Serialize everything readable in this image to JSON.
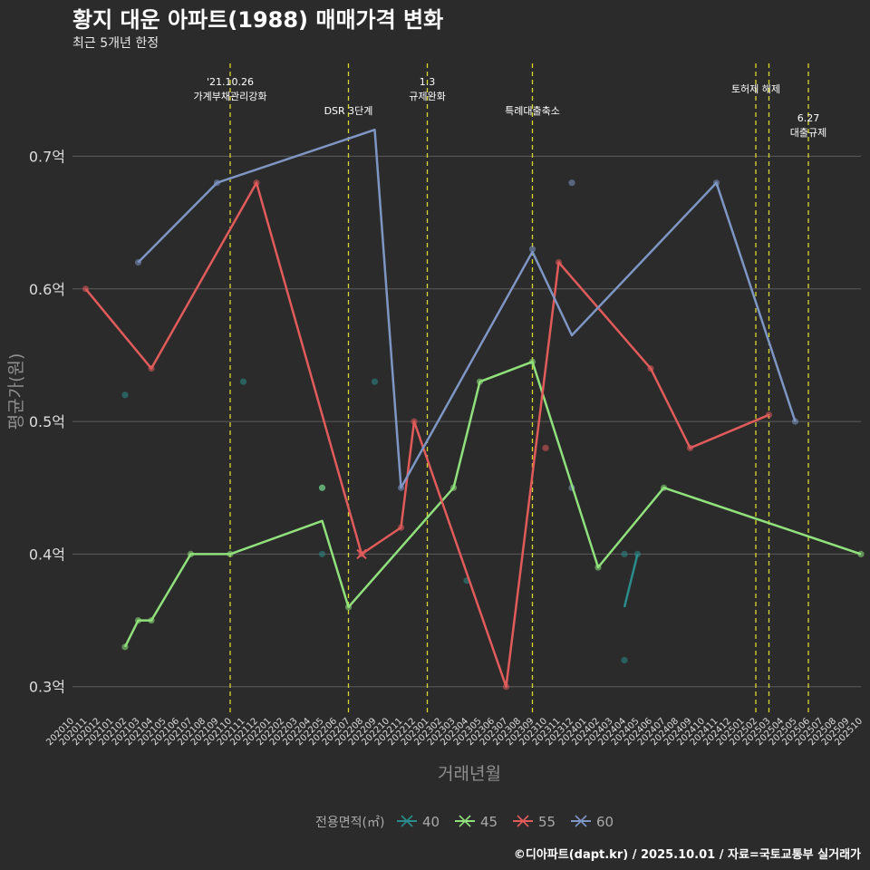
{
  "title": "황지 대운 아파트(1988) 매매가격 변화",
  "subtitle": "최근 5개년 한정",
  "caption": "©디아파트(dapt.kr) / 2025.10.01 / 자료=국토교통부 실거래가",
  "chart_data": {
    "type": "line",
    "xlabel": "거래년월",
    "ylabel": "평균가(원)",
    "ylim": [
      0.28,
      0.77
    ],
    "yticks": [
      {
        "value": 0.3,
        "label": "0.3억"
      },
      {
        "value": 0.4,
        "label": "0.4억"
      },
      {
        "value": 0.5,
        "label": "0.5억"
      },
      {
        "value": 0.6,
        "label": "0.6억"
      },
      {
        "value": 0.7,
        "label": "0.7억"
      }
    ],
    "categories": [
      "202010",
      "202011",
      "202012",
      "202101",
      "202102",
      "202103",
      "202104",
      "202105",
      "202106",
      "202107",
      "202108",
      "202109",
      "202110",
      "202111",
      "202112",
      "202201",
      "202202",
      "202203",
      "202204",
      "202205",
      "202206",
      "202207",
      "202208",
      "202209",
      "202210",
      "202211",
      "202212",
      "202301",
      "202302",
      "202303",
      "202304",
      "202305",
      "202306",
      "202307",
      "202308",
      "202309",
      "202310",
      "202311",
      "202312",
      "202401",
      "202402",
      "202403",
      "202404",
      "202405",
      "202406",
      "202407",
      "202408",
      "202409",
      "202410",
      "202411",
      "202412",
      "202501",
      "202502",
      "202503",
      "202504",
      "202505",
      "202506",
      "202507",
      "202508",
      "202509",
      "202510"
    ],
    "legend_title": "전용면적(㎡)",
    "series": [
      {
        "name": "40",
        "color": "#2a8c8c",
        "points": [
          [
            "202102",
            0.52
          ],
          [
            "202111",
            0.53
          ],
          [
            "202205",
            0.45
          ],
          [
            "202205",
            0.4
          ],
          [
            "202209",
            0.53
          ],
          [
            "202304",
            0.38
          ],
          [
            "202404",
            0.4
          ],
          [
            "202404",
            0.32
          ],
          [
            "202405",
            0.4
          ]
        ],
        "line": [
          [
            "202404",
            0.36
          ],
          [
            "202405",
            0.4
          ]
        ]
      },
      {
        "name": "45",
        "color": "#90e17c",
        "points": [
          [
            "202102",
            0.33
          ],
          [
            "202103",
            0.35
          ],
          [
            "202104",
            0.35
          ],
          [
            "202107",
            0.4
          ],
          [
            "202110",
            0.4
          ],
          [
            "202205",
            0.45
          ],
          [
            "202207",
            0.36
          ],
          [
            "202303",
            0.45
          ],
          [
            "202305",
            0.53
          ],
          [
            "202309",
            0.545
          ],
          [
            "202402",
            0.39
          ],
          [
            "202407",
            0.45
          ],
          [
            "202510",
            0.4
          ]
        ],
        "line": [
          [
            "202102",
            0.33
          ],
          [
            "202103",
            0.35
          ],
          [
            "202104",
            0.35
          ],
          [
            "202107",
            0.4
          ],
          [
            "202110",
            0.4
          ],
          [
            "202205",
            0.425
          ],
          [
            "202207",
            0.36
          ],
          [
            "202303",
            0.45
          ],
          [
            "202305",
            0.53
          ],
          [
            "202309",
            0.545
          ],
          [
            "202402",
            0.39
          ],
          [
            "202407",
            0.45
          ],
          [
            "202510",
            0.4
          ]
        ]
      },
      {
        "name": "55",
        "color": "#e15b5b",
        "points": [
          [
            "202011",
            0.6
          ],
          [
            "202104",
            0.54
          ],
          [
            "202112",
            0.68
          ],
          [
            "202208",
            0.4
          ],
          [
            "202211",
            0.42
          ],
          [
            "202212",
            0.5
          ],
          [
            "202307",
            0.3
          ],
          [
            "202310",
            0.48
          ],
          [
            "202311",
            0.62
          ],
          [
            "202406",
            0.54
          ],
          [
            "202409",
            0.48
          ],
          [
            "202503",
            0.505
          ]
        ],
        "line": [
          [
            "202011",
            0.6
          ],
          [
            "202104",
            0.54
          ],
          [
            "202112",
            0.68
          ],
          [
            "202208",
            0.4
          ],
          [
            "202211",
            0.42
          ],
          [
            "202212",
            0.5
          ],
          [
            "202307",
            0.3
          ],
          [
            "202311",
            0.62
          ],
          [
            "202406",
            0.54
          ],
          [
            "202409",
            0.48
          ],
          [
            "202503",
            0.505
          ]
        ]
      },
      {
        "name": "60",
        "color": "#7e96c4",
        "points": [
          [
            "202103",
            0.62
          ],
          [
            "202109",
            0.68
          ],
          [
            "202211",
            0.45
          ],
          [
            "202309",
            0.63
          ],
          [
            "202312",
            0.68
          ],
          [
            "202312",
            0.45
          ],
          [
            "202411",
            0.68
          ],
          [
            "202505",
            0.5
          ]
        ],
        "line": [
          [
            "202103",
            0.62
          ],
          [
            "202109",
            0.68
          ],
          [
            "202209",
            0.72
          ],
          [
            "202211",
            0.45
          ],
          [
            "202309",
            0.628
          ],
          [
            "202312",
            0.565
          ],
          [
            "202411",
            0.68
          ],
          [
            "202505",
            0.5
          ]
        ]
      }
    ],
    "events": [
      {
        "x": "202110",
        "lines": [
          "'21.10.26",
          "가계부채관리강화"
        ],
        "row": 0
      },
      {
        "x": "202207",
        "lines": [
          "DSR 3단계"
        ],
        "row": 2
      },
      {
        "x": "202301",
        "lines": [
          "1.3",
          "규제완화"
        ],
        "row": 0
      },
      {
        "x": "202309",
        "lines": [
          "특례대출축소"
        ],
        "row": 2
      },
      {
        "x": "202502",
        "lines": [
          "토허제 해제"
        ],
        "row": 1
      },
      {
        "x": "202503",
        "lines": [],
        "row": 0
      },
      {
        "x": "202506",
        "lines": [
          "6.27",
          "대출규제"
        ],
        "row": 3
      }
    ]
  }
}
